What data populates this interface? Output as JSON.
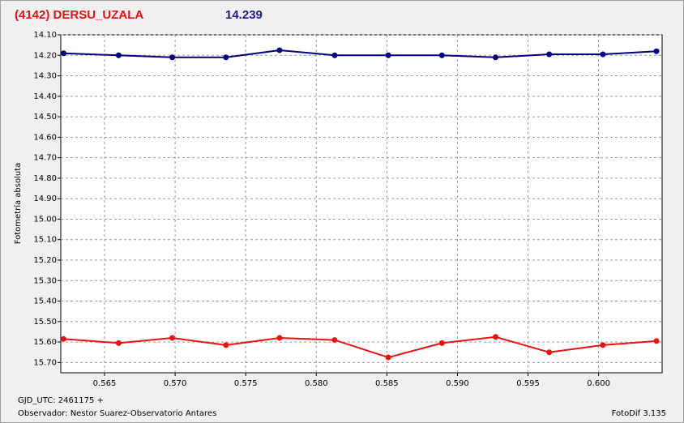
{
  "chart_data": {
    "type": "line",
    "title": "(4142) DERSU_UZALA",
    "annotation": "14.239",
    "y_label": "Fotometría absoluta",
    "x_label": "GJD_UTC: 2461175 +",
    "observer": "Observador: Nestor Suarez-Observatorio Antares",
    "software": "FotoDif 3.135",
    "x": [
      0.5621,
      0.566,
      0.5698,
      0.5736,
      0.5774,
      0.5813,
      0.5851,
      0.5889,
      0.5927,
      0.5965,
      0.6003,
      0.6041
    ],
    "series": [
      {
        "color": "#000080",
        "values": [
          14.19,
          14.2,
          14.21,
          14.21,
          14.175,
          14.2,
          14.2,
          14.2,
          14.21,
          14.195,
          14.195,
          14.18
        ]
      },
      {
        "color": "#ee1111",
        "values": [
          15.585,
          15.605,
          15.58,
          15.615,
          15.58,
          15.59,
          15.675,
          15.605,
          15.575,
          15.65,
          15.615,
          15.595
        ]
      }
    ],
    "xlim": [
      0.5619,
      0.6045
    ],
    "xticks": [
      0.565,
      {
        "value": 0.57,
        "label": "0.570"
      },
      0.575,
      {
        "value": 0.58,
        "label": "0.580"
      },
      0.585,
      {
        "value": 0.59,
        "label": "0.590"
      },
      0.595,
      {
        "value": 0.6,
        "label": "0.600"
      }
    ],
    "ylim": [
      14.1,
      15.75
    ],
    "y_inverted": true,
    "yticks": [
      {
        "value": 14.1,
        "label": "14.10"
      },
      {
        "value": 14.2,
        "label": "14.20"
      },
      {
        "value": 14.3,
        "label": "14.30"
      },
      {
        "value": 14.4,
        "label": "14.40"
      },
      {
        "value": 14.5,
        "label": "14.50"
      },
      {
        "value": 14.6,
        "label": "14.60"
      },
      {
        "value": 14.7,
        "label": "14.70"
      },
      {
        "value": 14.8,
        "label": "14.80"
      },
      {
        "value": 14.9,
        "label": "14.90"
      },
      {
        "value": 15.0,
        "label": "15.00"
      },
      {
        "value": 15.1,
        "label": "15.10"
      },
      {
        "value": 15.2,
        "label": "15.20"
      },
      {
        "value": 15.3,
        "label": "15.30"
      },
      {
        "value": 15.4,
        "label": "15.40"
      },
      {
        "value": 15.5,
        "label": "15.50"
      },
      {
        "value": 15.6,
        "label": "15.60"
      },
      {
        "value": 15.7,
        "label": "15.70"
      }
    ],
    "grid": true
  }
}
